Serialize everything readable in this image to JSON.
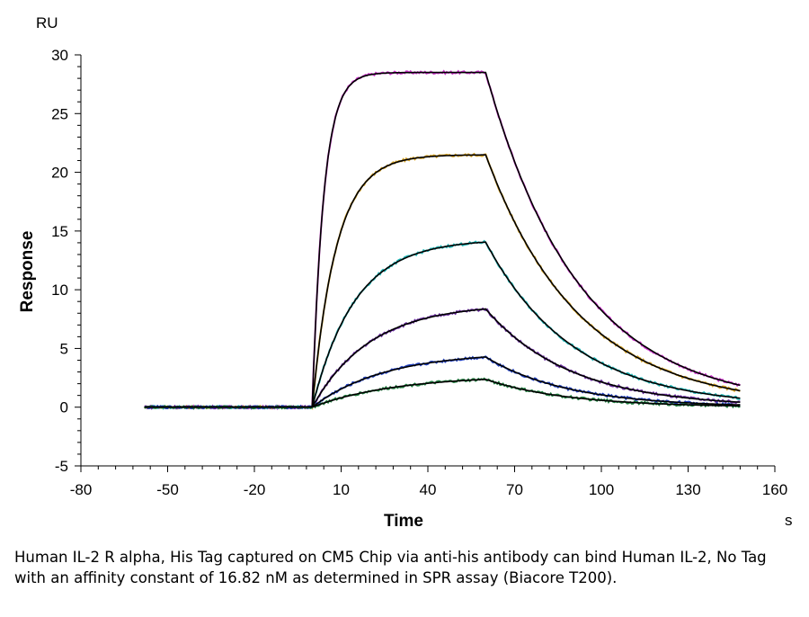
{
  "caption": "Human IL-2 R alpha, His Tag captured on CM5 Chip via anti-his antibody can bind Human IL-2, No Tag with an affinity constant of 16.82 nM as determined in SPR assay (Biacore T200).",
  "chart_data": {
    "type": "line",
    "title": "",
    "xlabel": "Time",
    "xunit": "s",
    "ylabel": "Response",
    "yunit": "RU",
    "xlim": [
      -80,
      160
    ],
    "ylim": [
      -5,
      30
    ],
    "xticks": [
      -80,
      -50,
      -20,
      10,
      40,
      70,
      100,
      130,
      160
    ],
    "yticks": [
      -5,
      0,
      5,
      10,
      15,
      20,
      25,
      30
    ],
    "grid": false,
    "legend": "none",
    "association_start": 0,
    "dissociation_start": 60,
    "x_end": 148,
    "baseline_start": -58,
    "fit_color": "#000000",
    "measured_colors": [
      "#cc33cc",
      "#d4a020",
      "#20b8b8",
      "#6a2ca0",
      "#2040c0",
      "#208040"
    ],
    "series": [
      {
        "plateau": 28.5,
        "ka": 0.25,
        "kd": 0.031
      },
      {
        "plateau": 21.5,
        "ka": 0.12,
        "kd": 0.031
      },
      {
        "plateau": 14.3,
        "ka": 0.068,
        "kd": 0.033
      },
      {
        "plateau": 8.8,
        "ka": 0.05,
        "kd": 0.034
      },
      {
        "plateau": 4.7,
        "ka": 0.04,
        "kd": 0.035
      },
      {
        "plateau": 2.7,
        "ka": 0.035,
        "kd": 0.035
      }
    ]
  }
}
